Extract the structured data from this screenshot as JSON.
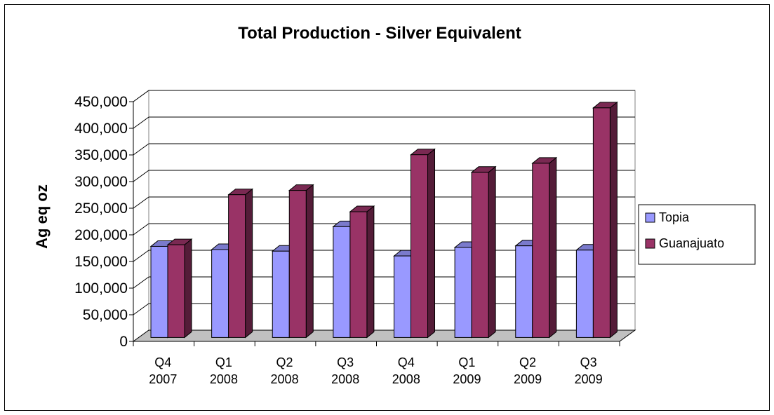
{
  "chart_data": {
    "type": "bar",
    "title": "Total Production - Silver Equivalent",
    "xlabel": "",
    "ylabel": "Ag eq oz",
    "ylim": [
      0,
      450000
    ],
    "yticks": [
      "0",
      "50,000",
      "100,000",
      "150,000",
      "200,000",
      "250,000",
      "300,000",
      "350,000",
      "400,000",
      "450,000"
    ],
    "categories": [
      [
        "Q4",
        "2007"
      ],
      [
        "Q1",
        "2008"
      ],
      [
        "Q2",
        "2008"
      ],
      [
        "Q3",
        "2008"
      ],
      [
        "Q4",
        "2008"
      ],
      [
        "Q1",
        "2009"
      ],
      [
        "Q2",
        "2009"
      ],
      [
        "Q3",
        "2009"
      ]
    ],
    "series": [
      {
        "name": "Topia",
        "color": "#9999ff",
        "values": [
          171000,
          165000,
          162000,
          208000,
          153000,
          169000,
          172000,
          164000
        ]
      },
      {
        "name": "Guanajuato",
        "color": "#993366",
        "values": [
          174000,
          268000,
          276000,
          236000,
          343000,
          310000,
          327000,
          431000
        ]
      }
    ],
    "grid": true,
    "legend": "right",
    "chart_style": "3d-clustered-column"
  }
}
